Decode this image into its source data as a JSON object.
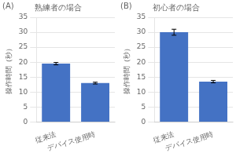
{
  "chart_data": [
    {
      "type": "bar",
      "title": "熟練者の場合",
      "annotations": [
        "(A)"
      ],
      "categories": [
        "従来法",
        "デバイス使用時"
      ],
      "values": [
        19.5,
        13.0
      ],
      "errors": [
        0.4,
        0.3
      ],
      "color": "#4472C4",
      "ylabel": "操作時間（秒）",
      "ylim": [
        0,
        35
      ],
      "yticks": [
        0,
        5,
        10,
        15,
        20,
        25,
        30,
        35
      ],
      "grid": true
    },
    {
      "type": "bar",
      "title": "初心者の場合",
      "annotations": [
        "(B)"
      ],
      "categories": [
        "従来法",
        "デバイス使用時"
      ],
      "values": [
        30.0,
        13.5
      ],
      "errors": [
        1.0,
        0.4
      ],
      "color": "#4472C4",
      "ylabel": "操作時間（秒）",
      "ylim": [
        0,
        35
      ],
      "yticks": [
        0,
        5,
        10,
        15,
        20,
        25,
        30,
        35
      ],
      "grid": true
    }
  ]
}
